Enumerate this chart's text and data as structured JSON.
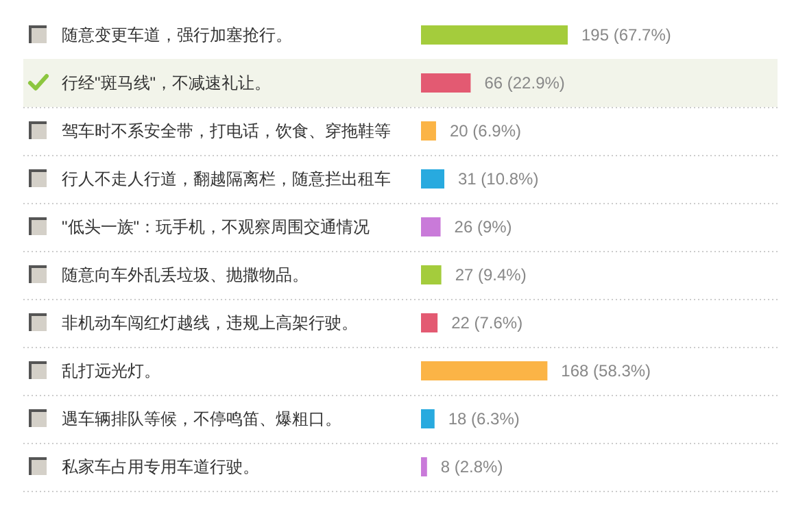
{
  "chart_data": {
    "type": "bar",
    "orientation": "horizontal",
    "categories": [
      "随意变更车道，强行加塞抢行。",
      "行经\"斑马线\"，不减速礼让。",
      "驾车时不系安全带，打电话，饮食、穿拖鞋等",
      "行人不走人行道，翻越隔离栏，随意拦出租车",
      "\"低头一族\"：玩手机，不观察周围交通情况",
      "随意向车外乱丢垃圾、抛撒物品。",
      "非机动车闯红灯越线，违规上高架行驶。",
      "乱打远光灯。",
      "遇车辆排队等候，不停鸣笛、爆粗口。",
      "私家车占用专用车道行驶。"
    ],
    "values": [
      195,
      66,
      20,
      31,
      26,
      27,
      22,
      168,
      18,
      8
    ],
    "colors": [
      "#a4cc3c",
      "#e35a72",
      "#fbb446",
      "#28aadf",
      "#c97ad9",
      "#a4cc3c",
      "#e35a72",
      "#fbb446",
      "#28aadf",
      "#c97ad9"
    ],
    "value_labels": [
      "195 (67.7%)",
      "66 (22.9%)",
      "20 (6.9%)",
      "31 (10.8%)",
      "26 (9%)",
      "27 (9.4%)",
      "22 (7.6%)",
      "168 (58.3%)",
      "18 (6.3%)",
      "8 (2.8%)"
    ],
    "grid": "y"
  }
}
